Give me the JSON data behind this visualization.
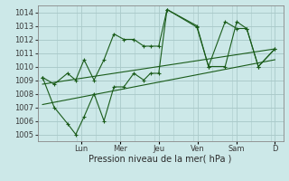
{
  "xlabel": "Pression niveau de la mer( hPa )",
  "bg_color": "#cce8e8",
  "grid_color": "#aacaca",
  "line_color": "#1a5c1a",
  "ylim": [
    1004.5,
    1014.5
  ],
  "yticks": [
    1005,
    1006,
    1007,
    1008,
    1009,
    1010,
    1011,
    1012,
    1013,
    1014
  ],
  "day_labels": [
    "Lun",
    "Mer",
    "Jeu",
    "Ven",
    "Sam",
    "D"
  ],
  "day_positions": [
    2.33,
    4.67,
    7.0,
    9.33,
    11.67,
    14.0
  ],
  "xlim": [
    -0.3,
    14.5
  ],
  "series1_x": [
    0,
    0.7,
    1.5,
    2.0,
    2.5,
    3.1,
    3.7,
    4.3,
    4.9,
    5.5,
    6.1,
    6.5,
    7.0,
    7.5,
    9.3,
    10.0,
    11.0,
    11.7,
    12.3,
    13.0,
    14.0
  ],
  "series1_y": [
    1009.2,
    1008.7,
    1009.5,
    1009.0,
    1010.5,
    1009.0,
    1010.5,
    1012.4,
    1012.0,
    1012.0,
    1011.5,
    1011.5,
    1011.5,
    1014.2,
    1013.0,
    1010.0,
    1013.3,
    1012.8,
    1012.8,
    1010.0,
    1011.3
  ],
  "series2_x": [
    0,
    0.7,
    1.5,
    2.0,
    2.5,
    3.1,
    3.7,
    4.3,
    4.9,
    5.5,
    6.1,
    6.5,
    7.0,
    7.5,
    9.3,
    10.0,
    11.0,
    11.7,
    12.3,
    13.0,
    14.0
  ],
  "series2_y": [
    1009.2,
    1007.0,
    1005.8,
    1005.0,
    1006.3,
    1008.0,
    1006.0,
    1008.5,
    1008.5,
    1009.5,
    1009.0,
    1009.5,
    1009.5,
    1014.2,
    1012.9,
    1010.0,
    1010.0,
    1013.3,
    1012.8,
    1010.0,
    1011.3
  ],
  "trend1_x": [
    0,
    14.0
  ],
  "trend1_y": [
    1008.7,
    1011.3
  ],
  "trend2_x": [
    0,
    14.0
  ],
  "trend2_y": [
    1007.2,
    1010.5
  ],
  "xlabel_fontsize": 7,
  "ytick_fontsize": 6,
  "xtick_fontsize": 6
}
